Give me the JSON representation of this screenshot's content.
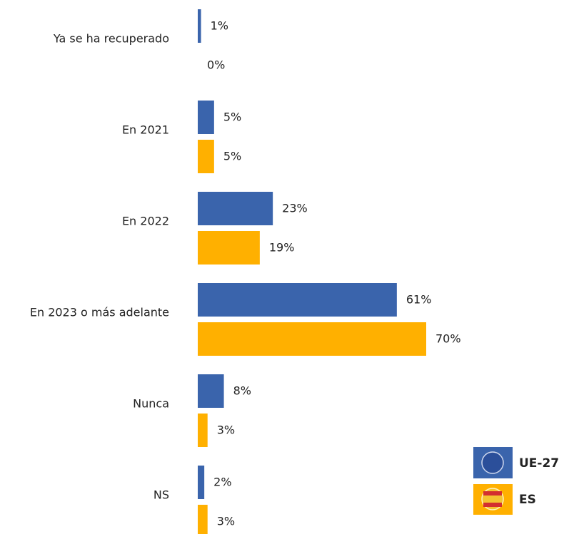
{
  "chart_data": {
    "type": "bar",
    "orientation": "horizontal",
    "categories": [
      "Ya se ha recuperado",
      "En 2021",
      "En 2022",
      "En 2023 o más adelante",
      "Nunca",
      "NS"
    ],
    "series": [
      {
        "name": "UE-27",
        "color": "#3a64ac",
        "values": [
          1,
          5,
          23,
          61,
          8,
          2
        ],
        "value_labels": [
          "1%",
          "5%",
          "23%",
          "61%",
          "8%",
          "2%"
        ]
      },
      {
        "name": "ES",
        "color": "#ffb000",
        "values": [
          0,
          5,
          19,
          70,
          3,
          3
        ],
        "value_labels": [
          "0%",
          "5%",
          "19%",
          "70%",
          "3%",
          "3%"
        ]
      }
    ]
  }
}
